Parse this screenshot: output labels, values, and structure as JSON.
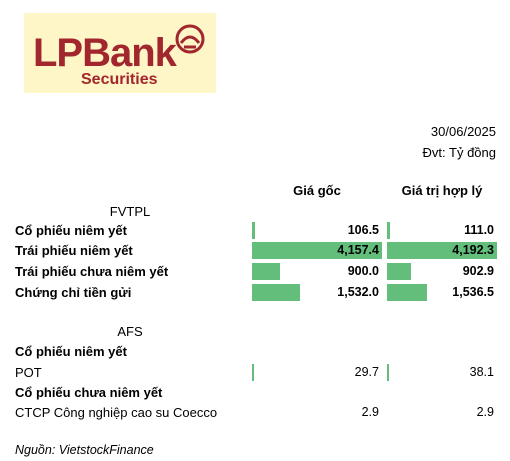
{
  "logo": {
    "brand": "LPBank",
    "sub": "Securities",
    "color": "#a2262e",
    "background": "#fff6c8"
  },
  "meta": {
    "date": "30/06/2025",
    "unit": "Đvt: Tỷ đồng"
  },
  "columns": {
    "cost": "Giá gốc",
    "fair": "Giá trị hợp lý"
  },
  "bar_color": "#63be7b",
  "bar_max": {
    "cost": 4157.4,
    "fair": 4192.3
  },
  "fvtpl": {
    "title": "FVTPL",
    "rows": [
      {
        "label": "Cổ phiếu niêm yết",
        "cost": "106.5",
        "fair": "111.0",
        "cost_v": 106.5,
        "fair_v": 111.0
      },
      {
        "label": "Trái phiếu niêm yết",
        "cost": "4,157.4",
        "fair": "4,192.3",
        "cost_v": 4157.4,
        "fair_v": 4192.3
      },
      {
        "label": "Trái phiếu chưa niêm yết",
        "cost": "900.0",
        "fair": "902.9",
        "cost_v": 900.0,
        "fair_v": 902.9
      },
      {
        "label": "Chứng chỉ tiền gửi",
        "cost": "1,532.0",
        "fair": "1,536.5",
        "cost_v": 1532.0,
        "fair_v": 1536.5
      }
    ]
  },
  "afs": {
    "title": "AFS",
    "group1": "Cổ phiếu niêm yết",
    "row1": {
      "label": "POT",
      "cost": "29.7",
      "fair": "38.1",
      "cost_v": 29.7,
      "fair_v": 38.1
    },
    "group2": "Cổ phiếu chưa niêm yết",
    "row2": {
      "label": "CTCP Công nghiệp cao su Coecco",
      "cost": "2.9",
      "fair": "2.9",
      "cost_v": 2.9,
      "fair_v": 2.9
    }
  },
  "source": "Nguồn: VietstockFinance"
}
